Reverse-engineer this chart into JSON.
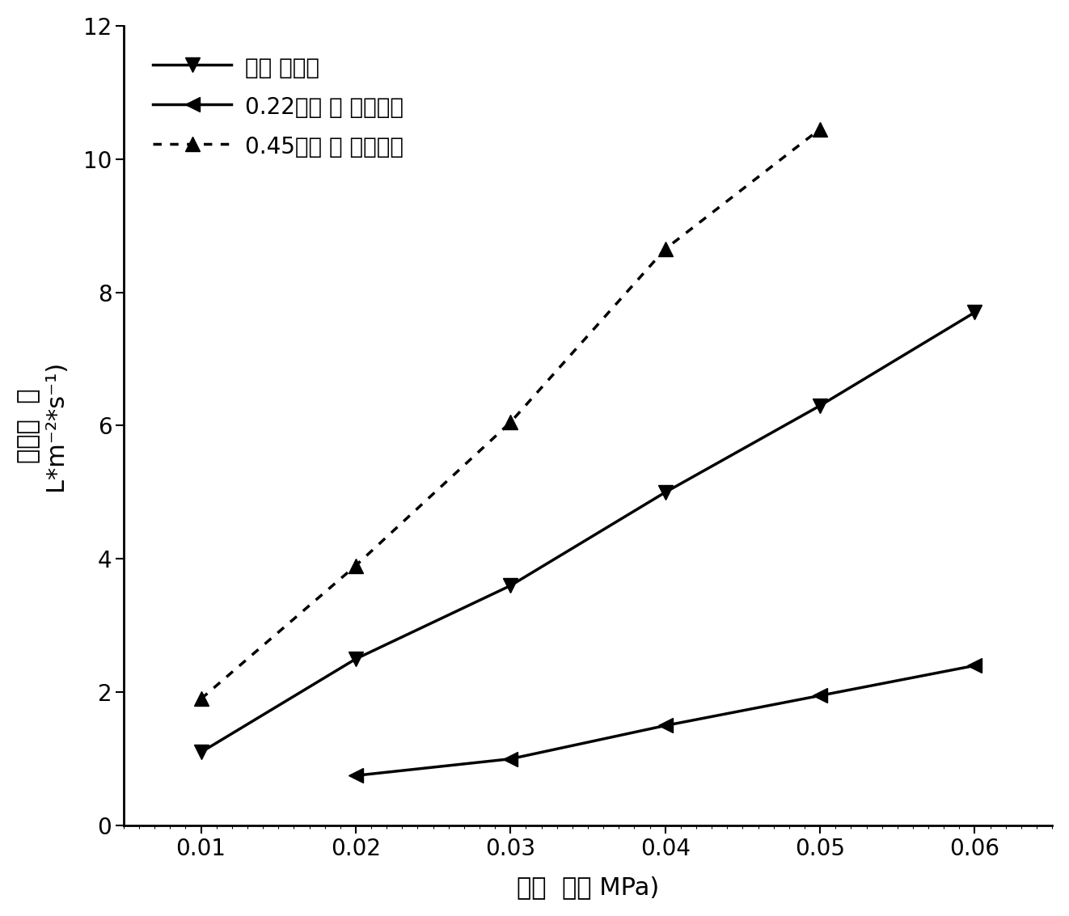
{
  "x": [
    0.01,
    0.02,
    0.03,
    0.04,
    0.05,
    0.06
  ],
  "series1_y": [
    1.1,
    2.5,
    3.6,
    5.0,
    6.3,
    7.7
  ],
  "series2_y": [
    null,
    0.75,
    1.0,
    1.5,
    1.95,
    2.4
  ],
  "series3_y": [
    1.9,
    3.9,
    6.05,
    8.65,
    10.45,
    null
  ],
  "series1_label": "纳米 纤维膜",
  "series2_label": "0.22微米 孔 径微滤膜",
  "series3_label": "0.45微米 孔 径微滤膜",
  "xlabel": "跨膜  压差 MPa)",
  "ylabel": "渗透通  量 L*m-2*s-1)",
  "ylabel_line1": "渗透通  量",
  "ylabel_line2": "L*m⁻²*s⁻¹)",
  "xlim": [
    0.005,
    0.065
  ],
  "ylim": [
    0,
    12
  ],
  "yticks": [
    0,
    2,
    4,
    6,
    8,
    10,
    12
  ],
  "xticks": [
    0.01,
    0.02,
    0.03,
    0.04,
    0.05,
    0.06
  ],
  "color": "#000000",
  "background_color": "#ffffff",
  "label_fontsize": 22,
  "tick_fontsize": 20,
  "legend_fontsize": 20,
  "line_width": 2.5,
  "marker_size": 13
}
